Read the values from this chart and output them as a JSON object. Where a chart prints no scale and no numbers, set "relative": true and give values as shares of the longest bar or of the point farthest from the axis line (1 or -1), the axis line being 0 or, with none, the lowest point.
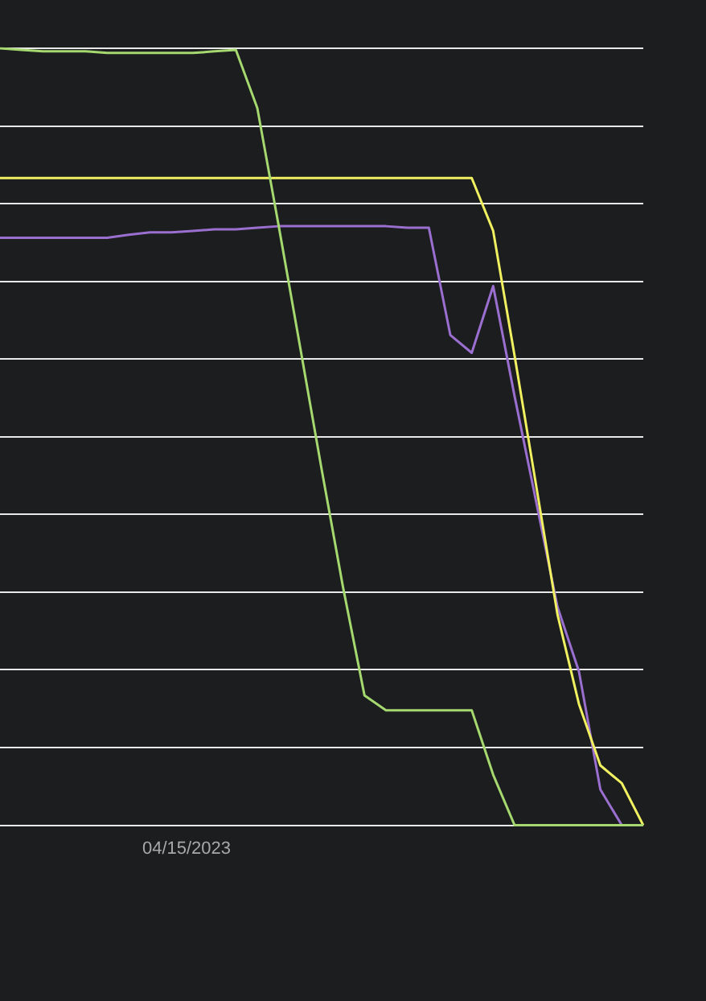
{
  "chart_data": {
    "type": "line",
    "relative": true,
    "grid": "y",
    "categories": [
      null,
      null,
      null,
      null,
      null,
      null,
      null,
      null,
      null,
      null,
      null,
      null,
      null,
      null,
      null,
      null,
      null,
      null,
      null,
      null,
      null,
      null,
      null,
      null,
      null,
      null,
      null,
      null,
      null,
      null,
      null
    ],
    "annotations": [
      "04/15/2023"
    ],
    "series": [
      {
        "color": "#a5d86f",
        "values": [
          1.0,
          0.998,
          0.996,
          0.996,
          0.996,
          0.994,
          0.994,
          0.994,
          0.994,
          0.994,
          0.996,
          0.998,
          0.923,
          0.771,
          0.615,
          0.458,
          0.306,
          0.167,
          0.148,
          0.148,
          0.148,
          0.148,
          0.148,
          0.065,
          0,
          0,
          0,
          0,
          0,
          0,
          0
        ]
      },
      {
        "color": "#f0f060",
        "values": [
          0.833,
          0.833,
          0.833,
          0.833,
          0.833,
          0.833,
          0.833,
          0.833,
          0.833,
          0.833,
          0.833,
          0.833,
          0.833,
          0.833,
          0.833,
          0.833,
          0.833,
          0.833,
          0.833,
          0.833,
          0.833,
          0.833,
          0.833,
          0.765,
          0.604,
          0.438,
          0.271,
          0.156,
          0.077,
          0.054,
          0
        ]
      },
      {
        "color": "#9b6fd0",
        "values": [
          0.756,
          0.756,
          0.756,
          0.756,
          0.756,
          0.756,
          0.76,
          0.763,
          0.763,
          0.765,
          0.767,
          0.767,
          0.769,
          0.771,
          0.771,
          0.771,
          0.771,
          0.771,
          0.771,
          0.769,
          0.769,
          0.631,
          0.608,
          0.694,
          0.552,
          0.417,
          0.281,
          0.198,
          0.046,
          0,
          null
        ]
      }
    ]
  }
}
